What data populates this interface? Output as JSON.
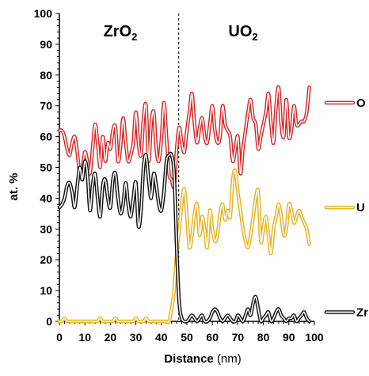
{
  "chart_data": {
    "type": "line",
    "xlabel": "Distance",
    "xunit": "(nm)",
    "ylabel": "at. %",
    "xlim": [
      0,
      100
    ],
    "ylim": [
      0,
      100
    ],
    "xticks": [
      "0",
      "10",
      "20",
      "30",
      "40",
      "50",
      "60",
      "70",
      "80",
      "90",
      "100"
    ],
    "yticks": [
      "0",
      "10",
      "20",
      "30",
      "40",
      "50",
      "60",
      "70",
      "80",
      "90",
      "100"
    ],
    "interface_x": 46.8,
    "regions": {
      "left": "ZrO",
      "left_sub": "2",
      "right": "UO",
      "right_sub": "2"
    },
    "series": [
      {
        "name": "O",
        "color": "#d62728",
        "x": [
          0,
          1,
          2,
          3,
          4,
          5,
          6,
          7,
          8,
          9,
          10,
          11,
          12,
          13,
          14,
          15,
          16,
          17,
          18,
          19,
          20,
          21,
          22,
          23,
          24,
          25,
          26,
          27,
          28,
          29,
          30,
          31,
          32,
          33,
          34,
          35,
          36,
          37,
          38,
          39,
          40,
          41,
          42,
          43,
          44,
          45,
          46,
          47,
          48,
          49,
          50,
          51,
          52,
          53,
          54,
          55,
          56,
          57,
          58,
          59,
          60,
          61,
          62,
          63,
          64,
          65,
          66,
          67,
          68,
          69,
          70,
          71,
          72,
          73,
          74,
          75,
          76,
          77,
          78,
          79,
          80,
          81,
          82,
          83,
          84,
          85,
          86,
          87,
          88,
          89,
          90,
          91,
          92,
          93,
          94,
          95,
          96,
          97,
          98
        ],
        "y": [
          62,
          62,
          60,
          56,
          54,
          58,
          60,
          55,
          48,
          50,
          55,
          52,
          48,
          56,
          64,
          58,
          50,
          60,
          52,
          58,
          56,
          62,
          63,
          52,
          57,
          66,
          58,
          52,
          54,
          58,
          68,
          58,
          54,
          66,
          70,
          52,
          64,
          68,
          56,
          52,
          59,
          71,
          60,
          48,
          46,
          44,
          56,
          63,
          58,
          55,
          62,
          68,
          74,
          64,
          58,
          63,
          66,
          60,
          58,
          64,
          70,
          62,
          58,
          60,
          70,
          64,
          62,
          60,
          52,
          56,
          60,
          48,
          56,
          62,
          68,
          72,
          66,
          64,
          56,
          60,
          64,
          68,
          74,
          64,
          58,
          70,
          76,
          64,
          60,
          72,
          60,
          62,
          70,
          64,
          64,
          65,
          65,
          68,
          76
        ]
      },
      {
        "name": "U",
        "color": "#e8b21a",
        "x": [
          0,
          1,
          2,
          3,
          4,
          5,
          6,
          7,
          8,
          9,
          10,
          11,
          12,
          13,
          14,
          15,
          16,
          17,
          18,
          19,
          20,
          21,
          22,
          23,
          24,
          25,
          26,
          27,
          28,
          29,
          30,
          31,
          32,
          33,
          34,
          35,
          36,
          37,
          38,
          39,
          40,
          41,
          42,
          43,
          44,
          45,
          46,
          47,
          48,
          49,
          50,
          51,
          52,
          53,
          54,
          55,
          56,
          57,
          58,
          59,
          60,
          61,
          62,
          63,
          64,
          65,
          66,
          67,
          68,
          69,
          70,
          71,
          72,
          73,
          74,
          75,
          76,
          77,
          78,
          79,
          80,
          81,
          82,
          83,
          84,
          85,
          86,
          87,
          88,
          89,
          90,
          91,
          92,
          93,
          94,
          95,
          96,
          97,
          98
        ],
        "y": [
          0,
          0,
          1,
          0,
          0,
          0,
          0,
          0,
          0,
          0,
          0,
          0,
          0,
          0,
          0,
          0,
          1,
          0,
          0,
          0,
          0,
          0,
          1,
          0,
          0,
          0,
          0,
          0,
          0,
          0,
          1,
          0,
          0,
          0,
          1,
          0,
          0,
          0,
          0,
          0,
          0,
          0,
          0,
          0,
          4,
          10,
          22,
          30,
          38,
          43,
          34,
          24,
          28,
          35,
          38,
          28,
          34,
          30,
          24,
          36,
          30,
          26,
          28,
          35,
          38,
          33,
          36,
          34,
          46,
          49,
          42,
          36,
          30,
          26,
          24,
          28,
          34,
          40,
          42,
          26,
          30,
          34,
          28,
          22,
          30,
          34,
          38,
          34,
          28,
          30,
          38,
          36,
          32,
          34,
          36,
          34,
          32,
          30,
          25
        ]
      },
      {
        "name": "Zr",
        "color": "#111111",
        "x": [
          0,
          1,
          2,
          3,
          4,
          5,
          6,
          7,
          8,
          9,
          10,
          11,
          12,
          13,
          14,
          15,
          16,
          17,
          18,
          19,
          20,
          21,
          22,
          23,
          24,
          25,
          26,
          27,
          28,
          29,
          30,
          31,
          32,
          33,
          34,
          35,
          36,
          37,
          38,
          39,
          40,
          41,
          42,
          43,
          44,
          45,
          46,
          47,
          48,
          49,
          50,
          51,
          52,
          53,
          54,
          55,
          56,
          57,
          58,
          59,
          60,
          61,
          62,
          63,
          64,
          65,
          66,
          67,
          68,
          69,
          70,
          71,
          72,
          73,
          74,
          75,
          76,
          77,
          78,
          79,
          80,
          81,
          82,
          83,
          84,
          85,
          86,
          87,
          88,
          89,
          90,
          91,
          92,
          93,
          94,
          95,
          96,
          97,
          98
        ],
        "y": [
          37,
          38,
          40,
          44,
          45,
          42,
          37,
          44,
          50,
          46,
          52,
          48,
          36,
          44,
          48,
          40,
          34,
          44,
          46,
          40,
          37,
          46,
          48,
          40,
          35,
          38,
          45,
          38,
          34,
          40,
          45,
          31,
          36,
          50,
          54,
          46,
          40,
          48,
          44,
          38,
          36,
          42,
          52,
          54,
          54,
          48,
          24,
          6,
          1,
          0,
          0,
          1,
          2,
          1,
          0,
          1,
          2,
          0,
          0,
          1,
          3,
          4,
          3,
          1,
          0,
          1,
          2,
          1,
          0,
          0,
          2,
          1,
          0,
          2,
          4,
          2,
          6,
          8,
          4,
          0,
          1,
          2,
          3,
          0,
          1,
          3,
          4,
          2,
          1,
          0,
          1,
          1,
          2,
          0,
          1,
          2,
          3,
          1,
          0
        ]
      }
    ]
  }
}
